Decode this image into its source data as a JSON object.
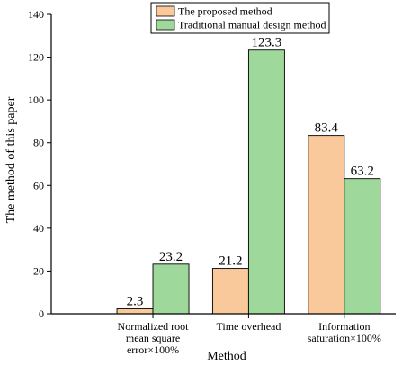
{
  "chart_data": {
    "type": "bar",
    "title": "",
    "xlabel": "Method",
    "ylabel": "The method of this paper",
    "ylim": [
      0,
      140
    ],
    "yticks": [
      0,
      20,
      40,
      60,
      80,
      100,
      120,
      140
    ],
    "grid": false,
    "legend_position": "top-left",
    "categories": [
      [
        "Normalized root",
        "mean square",
        "error×100%"
      ],
      [
        "Time overhead"
      ],
      [
        "Information",
        "saturation×100%"
      ]
    ],
    "series": [
      {
        "name": "The proposed method",
        "color": "#F9C89B",
        "values": [
          2.3,
          21.2,
          83.4
        ]
      },
      {
        "name": "Traditional manual design method",
        "color": "#9ED89A",
        "values": [
          23.2,
          123.3,
          63.2
        ]
      }
    ]
  }
}
